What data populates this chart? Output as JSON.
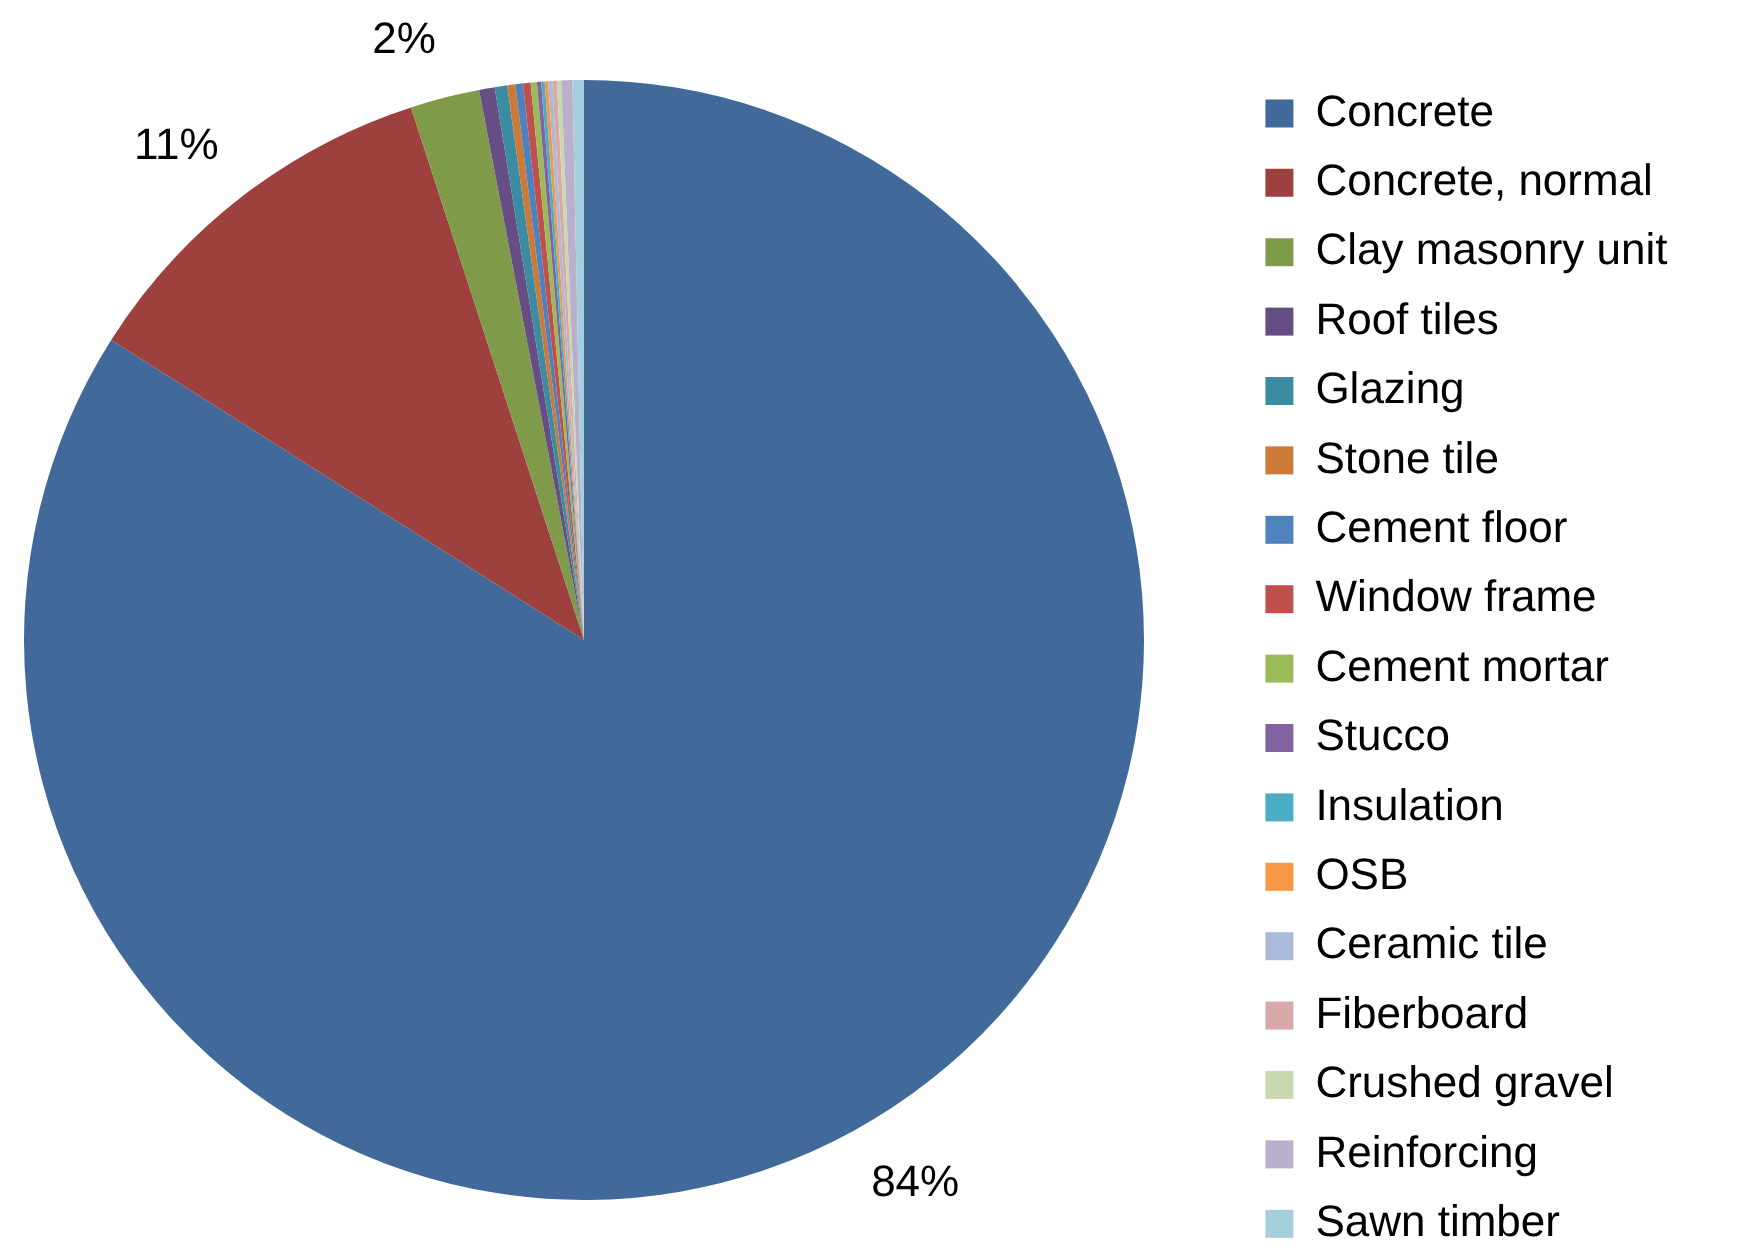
{
  "chart_data": {
    "type": "pie",
    "categories": [
      "Concrete",
      "Concrete, normal",
      "Clay masonry unit",
      "Roof tiles",
      "Glazing",
      "Stone tile",
      "Cement floor",
      "Window frame",
      "Cement mortar",
      "Stucco",
      "Insulation",
      "OSB",
      "Ceramic tile",
      "Fiberboard",
      "Crushed gravel",
      "Reinforcing",
      "Sawn timber"
    ],
    "values": [
      84,
      11,
      2,
      0.45,
      0.36,
      0.23,
      0.22,
      0.22,
      0.18,
      0.12,
      0.1,
      0.1,
      0.12,
      0.13,
      0.12,
      0.32,
      0.33
    ],
    "colors": [
      "#416a9b",
      "#9e413e",
      "#7f9a48",
      "#664e85",
      "#3b8ca2",
      "#cb7a37",
      "#4f81bd",
      "#c0504d",
      "#9bbb59",
      "#8064a2",
      "#4bacc6",
      "#f79646",
      "#aabad7",
      "#d9a9a8",
      "#c9d9ae",
      "#bbb0cb",
      "#a6cfdc"
    ],
    "value_labels": [
      "84%",
      "11%",
      "2%",
      null,
      null,
      null,
      null,
      null,
      null,
      null,
      null,
      null,
      null,
      null,
      null,
      null,
      null
    ],
    "legend": "right"
  }
}
